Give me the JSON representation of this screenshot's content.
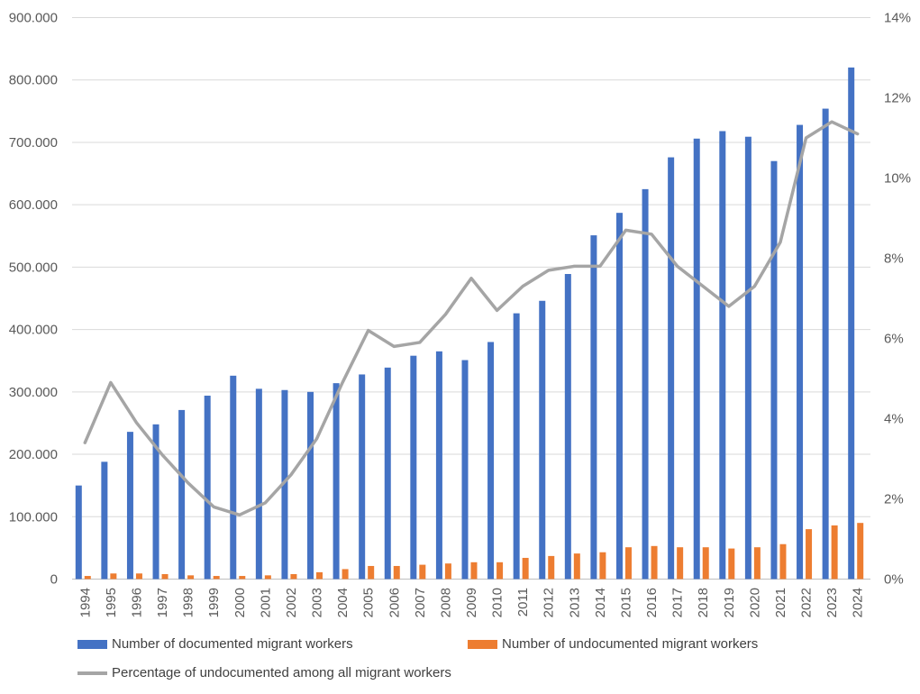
{
  "chart_data": {
    "type": "bar",
    "categories": [
      "1994",
      "1995",
      "1996",
      "1997",
      "1998",
      "1999",
      "2000",
      "2001",
      "2002",
      "2003",
      "2004",
      "2005",
      "2006",
      "2007",
      "2008",
      "2009",
      "2010",
      "2011",
      "2012",
      "2013",
      "2014",
      "2015",
      "2016",
      "2017",
      "2018",
      "2019",
      "2020",
      "2021",
      "2022",
      "2023",
      "2024"
    ],
    "series": [
      {
        "name": "Number of documented migrant workers",
        "type": "bar",
        "axis": "left",
        "color": "#4472C4",
        "values": [
          150000,
          188000,
          236000,
          248000,
          271000,
          294000,
          326000,
          305000,
          303000,
          300000,
          314000,
          328000,
          339000,
          358000,
          365000,
          351000,
          380000,
          426000,
          446000,
          489000,
          551000,
          587000,
          625000,
          676000,
          706000,
          718000,
          709000,
          670000,
          728000,
          754000,
          820000
        ]
      },
      {
        "name": "Number of undocumented migrant workers",
        "type": "bar",
        "axis": "left",
        "color": "#ED7D31",
        "values": [
          5000,
          9000,
          9000,
          8000,
          6000,
          5000,
          5000,
          6000,
          8000,
          11000,
          16000,
          21000,
          21000,
          23000,
          25000,
          27000,
          27000,
          34000,
          37000,
          41000,
          43000,
          51000,
          53000,
          51000,
          51000,
          49000,
          51000,
          56000,
          80000,
          86000,
          90000
        ]
      },
      {
        "name": "Percentage of undocumented among all migrant workers",
        "type": "line",
        "axis": "right",
        "color": "#A5A5A5",
        "values": [
          3.4,
          4.9,
          3.9,
          3.1,
          2.4,
          1.8,
          1.6,
          1.9,
          2.6,
          3.5,
          4.9,
          6.2,
          5.8,
          5.9,
          6.6,
          7.5,
          6.7,
          7.3,
          7.7,
          7.8,
          7.8,
          8.7,
          8.6,
          7.8,
          7.3,
          6.8,
          7.3,
          8.4,
          11.0,
          11.4,
          11.1
        ]
      }
    ],
    "ylim": [
      0,
      900000
    ],
    "y_ticks": [
      "0",
      "100.000",
      "200.000",
      "300.000",
      "400.000",
      "500.000",
      "600.000",
      "700.000",
      "800.000",
      "900.000"
    ],
    "y2lim": [
      0,
      14
    ],
    "y2_ticks": [
      "0%",
      "2%",
      "4%",
      "6%",
      "8%",
      "10%",
      "12%",
      "14%"
    ],
    "grid": true,
    "legend_position": "bottom"
  }
}
